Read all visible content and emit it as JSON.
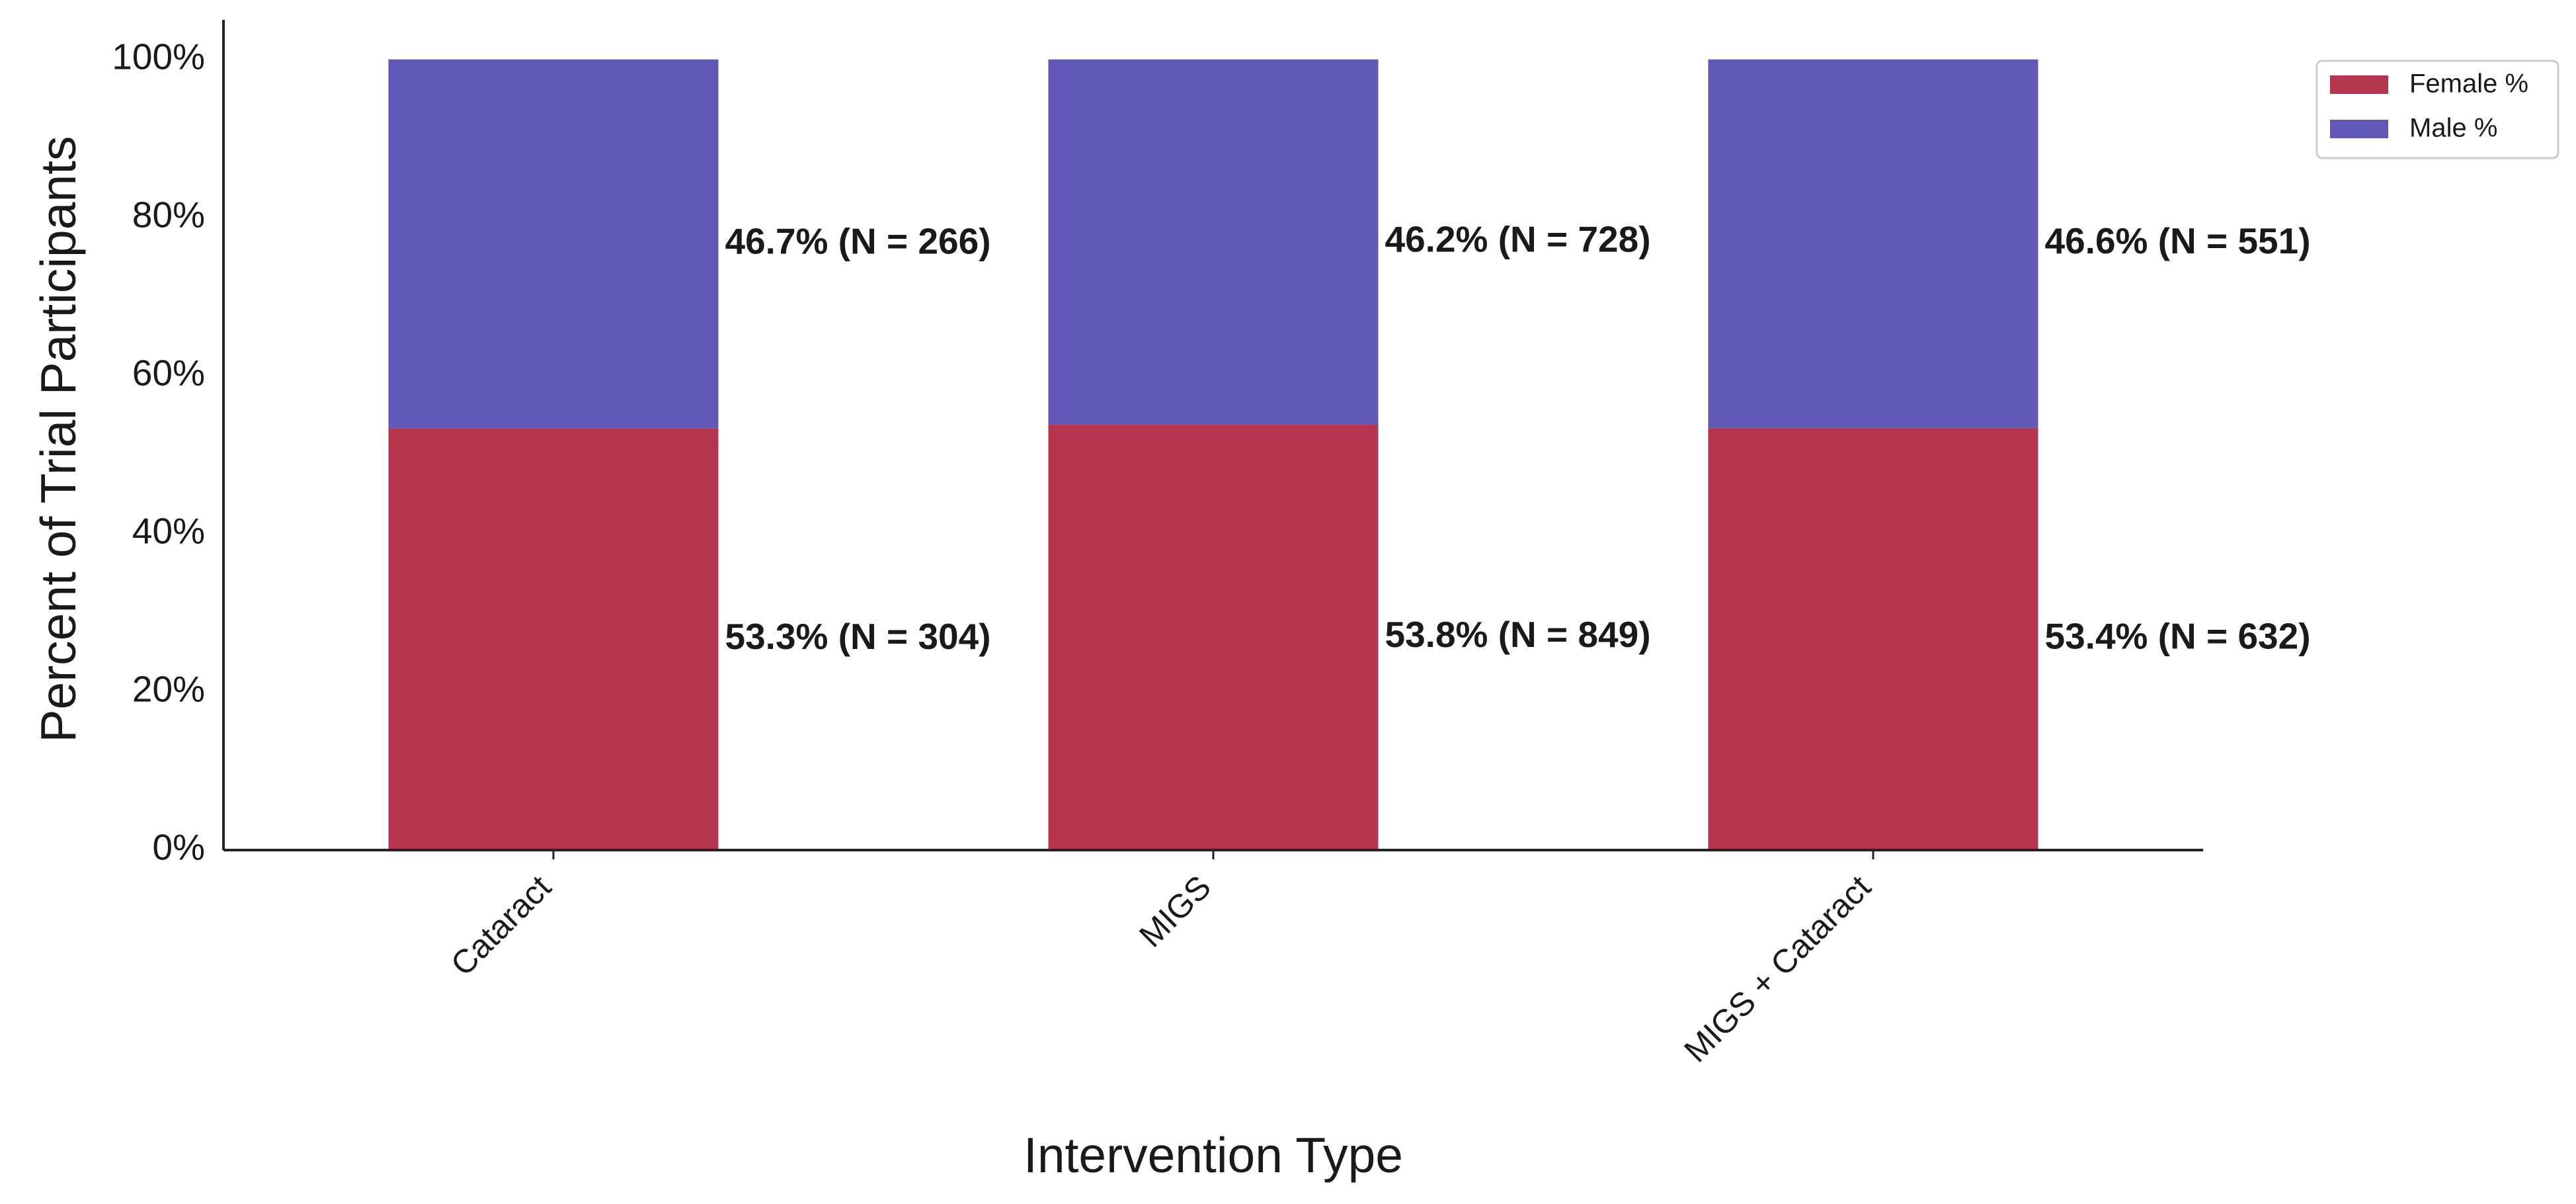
{
  "chart_data": {
    "type": "stacked_bar",
    "x_label": "Intervention Type",
    "y_label": "Percent of Trial Participants",
    "categories": [
      "Cataract",
      "MIGS",
      "MIGS + Cataract"
    ],
    "series": [
      {
        "name": "Female %",
        "color": "#b5374f",
        "values": [
          53.3,
          53.8,
          53.4
        ],
        "value_labels": [
          "53.3% (N = 304)",
          "53.8% (N = 849)",
          "53.4% (N = 632)"
        ]
      },
      {
        "name": "Male %",
        "color": "#6159b5",
        "values": [
          46.7,
          46.2,
          46.6
        ],
        "value_labels": [
          "46.7% (N = 266)",
          "46.2% (N = 728)",
          "46.6% (N = 551)"
        ]
      }
    ],
    "ylim": [
      0,
      105
    ],
    "yticks": [
      {
        "value": 0,
        "label": "0%"
      },
      {
        "value": 20,
        "label": "20%"
      },
      {
        "value": 40,
        "label": "40%"
      },
      {
        "value": 60,
        "label": "60%"
      },
      {
        "value": 80,
        "label": "80%"
      },
      {
        "value": 100,
        "label": "100%"
      }
    ],
    "grid": false,
    "legend": "upper right"
  }
}
